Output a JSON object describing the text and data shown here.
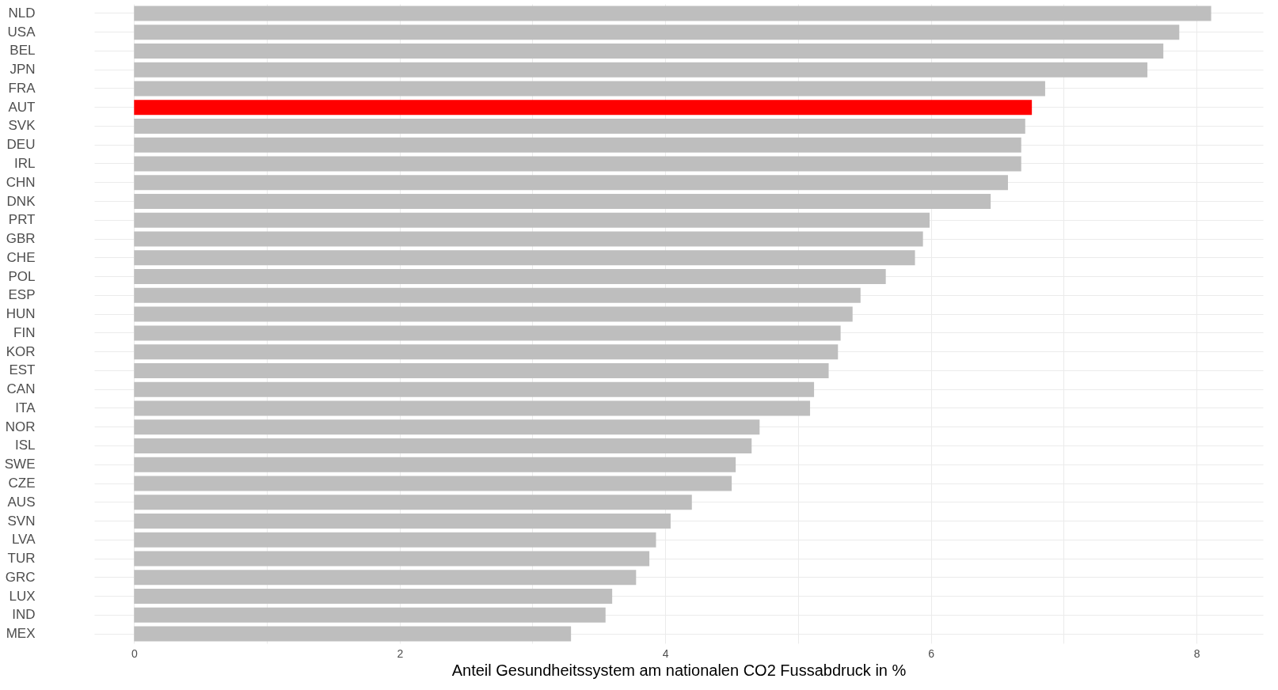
{
  "chart_data": {
    "type": "bar",
    "orientation": "horizontal",
    "xlabel": "Anteil Gesundheitssystem am nationalen CO2 Fussabdruck in %",
    "categories": [
      "NLD",
      "USA",
      "BEL",
      "JPN",
      "FRA",
      "AUT",
      "SVK",
      "DEU",
      "IRL",
      "CHN",
      "DNK",
      "PRT",
      "GBR",
      "CHE",
      "POL",
      "ESP",
      "HUN",
      "FIN",
      "KOR",
      "EST",
      "CAN",
      "ITA",
      "NOR",
      "ISL",
      "SWE",
      "CZE",
      "AUS",
      "SVN",
      "LVA",
      "TUR",
      "GRC",
      "LUX",
      "IND",
      "MEX"
    ],
    "values": [
      8.11,
      7.87,
      7.75,
      7.63,
      6.86,
      6.76,
      6.71,
      6.68,
      6.68,
      6.58,
      6.45,
      5.99,
      5.94,
      5.88,
      5.66,
      5.47,
      5.41,
      5.32,
      5.3,
      5.23,
      5.12,
      5.09,
      4.71,
      4.65,
      4.53,
      4.5,
      4.2,
      4.04,
      3.93,
      3.88,
      3.78,
      3.6,
      3.55,
      3.29
    ],
    "colors": [
      "#bebebe",
      "#bebebe",
      "#bebebe",
      "#bebebe",
      "#bebebe",
      "#ff0000",
      "#bebebe",
      "#bebebe",
      "#bebebe",
      "#bebebe",
      "#bebebe",
      "#bebebe",
      "#bebebe",
      "#bebebe",
      "#bebebe",
      "#bebebe",
      "#bebebe",
      "#bebebe",
      "#bebebe",
      "#bebebe",
      "#bebebe",
      "#bebebe",
      "#bebebe",
      "#bebebe",
      "#bebebe",
      "#bebebe",
      "#bebebe",
      "#bebebe",
      "#bebebe",
      "#bebebe",
      "#bebebe",
      "#bebebe",
      "#bebebe",
      "#bebebe"
    ],
    "xlim": [
      -0.3,
      8.5
    ],
    "xticks": [
      0,
      {
        "value": 1,
        "label": null
      },
      2,
      {
        "value": 3,
        "label": null
      },
      4,
      {
        "value": 5,
        "label": null
      },
      6,
      {
        "value": 7,
        "label": null
      },
      8
    ],
    "grid": true,
    "legend": false
  }
}
